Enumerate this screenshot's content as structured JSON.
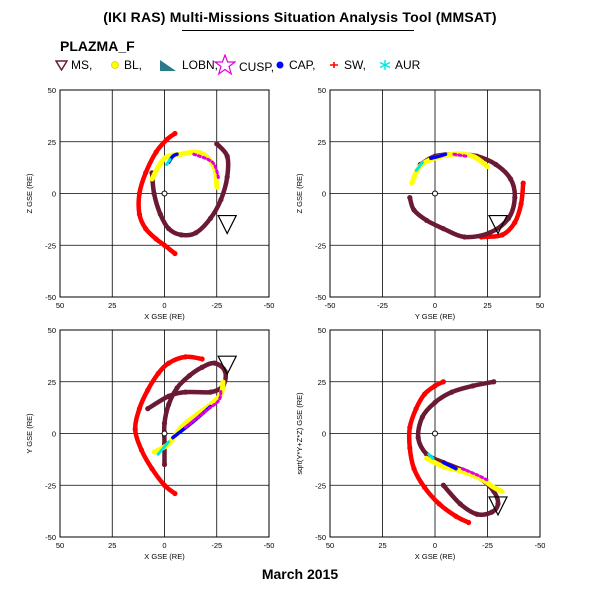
{
  "header": {
    "title": "(IKI RAS) Multi-Missions Situation Analysis Tool (MMSAT)",
    "mission": "PLAZMA_F",
    "date": "March 2015"
  },
  "legend": [
    {
      "label": "MS,",
      "marker": "triangle-down-icon",
      "color": "#6b1a33"
    },
    {
      "label": "BL,",
      "marker": "dot-icon",
      "color": "#ffff00"
    },
    {
      "label": "LOBN,",
      "marker": "flag-icon",
      "color": "#2a7a8a"
    },
    {
      "label": "CUSP,",
      "marker": "star-icon",
      "color": "#e000e0"
    },
    {
      "label": "CAP,",
      "marker": "dot-icon",
      "color": "#0000ff"
    },
    {
      "label": "SW,",
      "marker": "cross-icon",
      "color": "#ff0000"
    },
    {
      "label": "AUR",
      "marker": "asterisk-icon",
      "color": "#00e5e5"
    }
  ],
  "chart_data": [
    {
      "type": "scatter",
      "xlabel": "X GSE (RE)",
      "ylabel": "Z GSE (RE)",
      "xlim": [
        50,
        -50
      ],
      "ylim": [
        -50,
        50
      ],
      "xticks": [
        50,
        25,
        0,
        -25,
        -50
      ],
      "yticks": [
        50,
        25,
        0,
        -25,
        -50
      ],
      "grid": true,
      "series": [
        {
          "name": "SW",
          "points": [
            [
              -5,
              29
            ],
            [
              -1,
              26
            ],
            [
              4,
              20
            ],
            [
              9,
              10
            ],
            [
              12,
              0
            ],
            [
              12,
              -10
            ],
            [
              9,
              -17
            ],
            [
              4,
              -22
            ],
            [
              0,
              -25
            ],
            [
              -5,
              -29
            ]
          ]
        },
        {
          "name": "MS",
          "points": [
            [
              6,
              10
            ],
            [
              5,
              0
            ],
            [
              2,
              -10
            ],
            [
              -2,
              -17
            ],
            [
              -8,
              -20
            ],
            [
              -15,
              -19
            ],
            [
              -22,
              -12
            ],
            [
              -27,
              -3
            ],
            [
              -30,
              8
            ],
            [
              -30,
              18
            ],
            [
              -25,
              24
            ]
          ]
        },
        {
          "name": "BL",
          "points": [
            [
              6,
              7
            ],
            [
              0,
              17
            ],
            [
              -8,
              19
            ],
            [
              -15,
              20
            ],
            [
              -20,
              18
            ],
            [
              -24,
              12
            ],
            [
              -25,
              3
            ]
          ]
        },
        {
          "name": "CAP",
          "points": [
            [
              -2,
              15
            ],
            [
              -4,
              18
            ],
            [
              -6,
              19
            ]
          ]
        },
        {
          "name": "CUSP",
          "points": [
            [
              -14,
              19
            ],
            [
              -23,
              15
            ],
            [
              -26,
              7
            ]
          ]
        },
        {
          "name": "AUR",
          "points": [
            [
              -1,
              14
            ],
            [
              -3,
              17
            ]
          ]
        },
        {
          "name": "Apogee",
          "points": [
            [
              -30,
              -15
            ]
          ]
        }
      ]
    },
    {
      "type": "scatter",
      "xlabel": "Y GSE (RE)",
      "ylabel": "Z GSE (RE)",
      "xlim": [
        -50,
        50
      ],
      "ylim": [
        -50,
        50
      ],
      "xticks": [
        -50,
        -25,
        0,
        25,
        50
      ],
      "yticks": [
        50,
        25,
        0,
        -25,
        -50
      ],
      "grid": true,
      "series": [
        {
          "name": "SW",
          "points": [
            [
              22,
              -21
            ],
            [
              32,
              -20
            ],
            [
              38,
              -14
            ],
            [
              41,
              -5
            ],
            [
              42,
              5
            ]
          ]
        },
        {
          "name": "MS",
          "points": [
            [
              -12,
              -2
            ],
            [
              -10,
              -8
            ],
            [
              -4,
              -13
            ],
            [
              4,
              -17
            ],
            [
              14,
              -21
            ],
            [
              26,
              -19
            ],
            [
              35,
              -12
            ],
            [
              38,
              -2
            ],
            [
              36,
              7
            ],
            [
              29,
              14
            ],
            [
              20,
              18
            ],
            [
              10,
              19
            ],
            [
              0,
              18
            ],
            [
              -7,
              14
            ]
          ]
        },
        {
          "name": "BL",
          "points": [
            [
              -11,
              5
            ],
            [
              -8,
              12
            ],
            [
              -3,
              16
            ],
            [
              8,
              19
            ],
            [
              18,
              18
            ],
            [
              25,
              13
            ]
          ]
        },
        {
          "name": "CAP",
          "points": [
            [
              -2,
              17
            ],
            [
              2,
              18
            ],
            [
              5,
              19
            ]
          ]
        },
        {
          "name": "CUSP",
          "points": [
            [
              9,
              19
            ],
            [
              15,
              18
            ]
          ]
        },
        {
          "name": "AUR",
          "points": [
            [
              -6,
              15
            ],
            [
              -9,
              11
            ]
          ]
        },
        {
          "name": "Apogee",
          "points": [
            [
              30,
              -15
            ]
          ]
        }
      ]
    },
    {
      "type": "scatter",
      "xlabel": "X GSE (RE)",
      "ylabel": "Y GSE (RE)",
      "xlim": [
        50,
        -50
      ],
      "ylim": [
        -50,
        50
      ],
      "xticks": [
        50,
        25,
        0,
        -25,
        -50
      ],
      "yticks": [
        -50,
        -25,
        0,
        25,
        50
      ],
      "grid": true,
      "series": [
        {
          "name": "SW",
          "points": [
            [
              -5,
              -29
            ],
            [
              0,
              -25
            ],
            [
              6,
              -17
            ],
            [
              11,
              -8
            ],
            [
              14,
              2
            ],
            [
              12,
              12
            ],
            [
              8,
              21
            ],
            [
              3,
              29
            ],
            [
              -2,
              34
            ],
            [
              -10,
              37
            ],
            [
              -18,
              36
            ]
          ]
        },
        {
          "name": "MS",
          "points": [
            [
              0,
              -15
            ],
            [
              0,
              -5
            ],
            [
              0,
              5
            ],
            [
              -2,
              14
            ],
            [
              -6,
              22
            ],
            [
              -12,
              28
            ],
            [
              -18,
              32
            ],
            [
              -24,
              34
            ],
            [
              -29,
              30
            ],
            [
              -28,
              23
            ],
            [
              -22,
              20
            ],
            [
              -10,
              20
            ],
            [
              -2,
              18
            ],
            [
              8,
              12
            ]
          ]
        },
        {
          "name": "BL",
          "points": [
            [
              5,
              -9
            ],
            [
              -2,
              -5
            ],
            [
              -8,
              3
            ],
            [
              -14,
              8
            ],
            [
              -22,
              14
            ],
            [
              -27,
              19
            ],
            [
              -28,
              25
            ]
          ]
        },
        {
          "name": "CAP",
          "points": [
            [
              -4,
              -2
            ],
            [
              -14,
              6
            ],
            [
              -22,
              13
            ]
          ]
        },
        {
          "name": "CUSP",
          "points": [
            [
              -10,
              3
            ],
            [
              -20,
              11
            ],
            [
              -26,
              16
            ],
            [
              -27,
              21
            ]
          ]
        },
        {
          "name": "AUR",
          "points": [
            [
              3,
              -10
            ],
            [
              -2,
              -4
            ]
          ]
        },
        {
          "name": "Apogee",
          "points": [
            [
              -30,
              33
            ]
          ]
        }
      ]
    },
    {
      "type": "scatter",
      "xlabel": "X GSE (RE)",
      "ylabel": "sqrt(Y*Y+Z*Z) GSE (RE)",
      "xlim": [
        50,
        -50
      ],
      "ylim": [
        -50,
        50
      ],
      "xticks": [
        50,
        25,
        0,
        -25,
        -50
      ],
      "yticks": [
        -50,
        -25,
        0,
        25,
        50
      ],
      "grid": true,
      "series": [
        {
          "name": "SW",
          "points": [
            [
              -16,
              -43
            ],
            [
              -10,
              -40
            ],
            [
              -2,
              -34
            ],
            [
              5,
              -26
            ],
            [
              10,
              -17
            ],
            [
              12,
              -7
            ],
            [
              12,
              3
            ],
            [
              9,
              12
            ],
            [
              5,
              19
            ],
            [
              0,
              23
            ],
            [
              -4,
              25
            ]
          ]
        },
        {
          "name": "MS",
          "points": [
            [
              -4,
              -25
            ],
            [
              -12,
              -34
            ],
            [
              -20,
              -39
            ],
            [
              -27,
              -38
            ],
            [
              -30,
              -34
            ],
            [
              -28,
              -28
            ],
            [
              -22,
              -22
            ],
            [
              -14,
              -18
            ],
            [
              -4,
              -14
            ],
            [
              4,
              -10
            ],
            [
              8,
              -2
            ],
            [
              6,
              8
            ],
            [
              0,
              15
            ],
            [
              -8,
              20
            ],
            [
              -18,
              23
            ],
            [
              -28,
              25
            ]
          ]
        },
        {
          "name": "BL",
          "points": [
            [
              4,
              -12
            ],
            [
              -4,
              -16
            ],
            [
              -12,
              -18
            ],
            [
              -22,
              -22
            ],
            [
              -28,
              -26
            ],
            [
              -32,
              -28
            ]
          ]
        },
        {
          "name": "CAP",
          "points": [
            [
              -4,
              -14
            ],
            [
              -10,
              -17
            ]
          ]
        },
        {
          "name": "CUSP",
          "points": [
            [
              -13,
              -17
            ],
            [
              -20,
              -20
            ],
            [
              -26,
              -23
            ]
          ]
        },
        {
          "name": "AUR",
          "points": [
            [
              1,
              -12
            ],
            [
              3,
              -10
            ]
          ]
        },
        {
          "name": "Apogee",
          "points": [
            [
              -30,
              -35
            ]
          ]
        }
      ]
    }
  ]
}
